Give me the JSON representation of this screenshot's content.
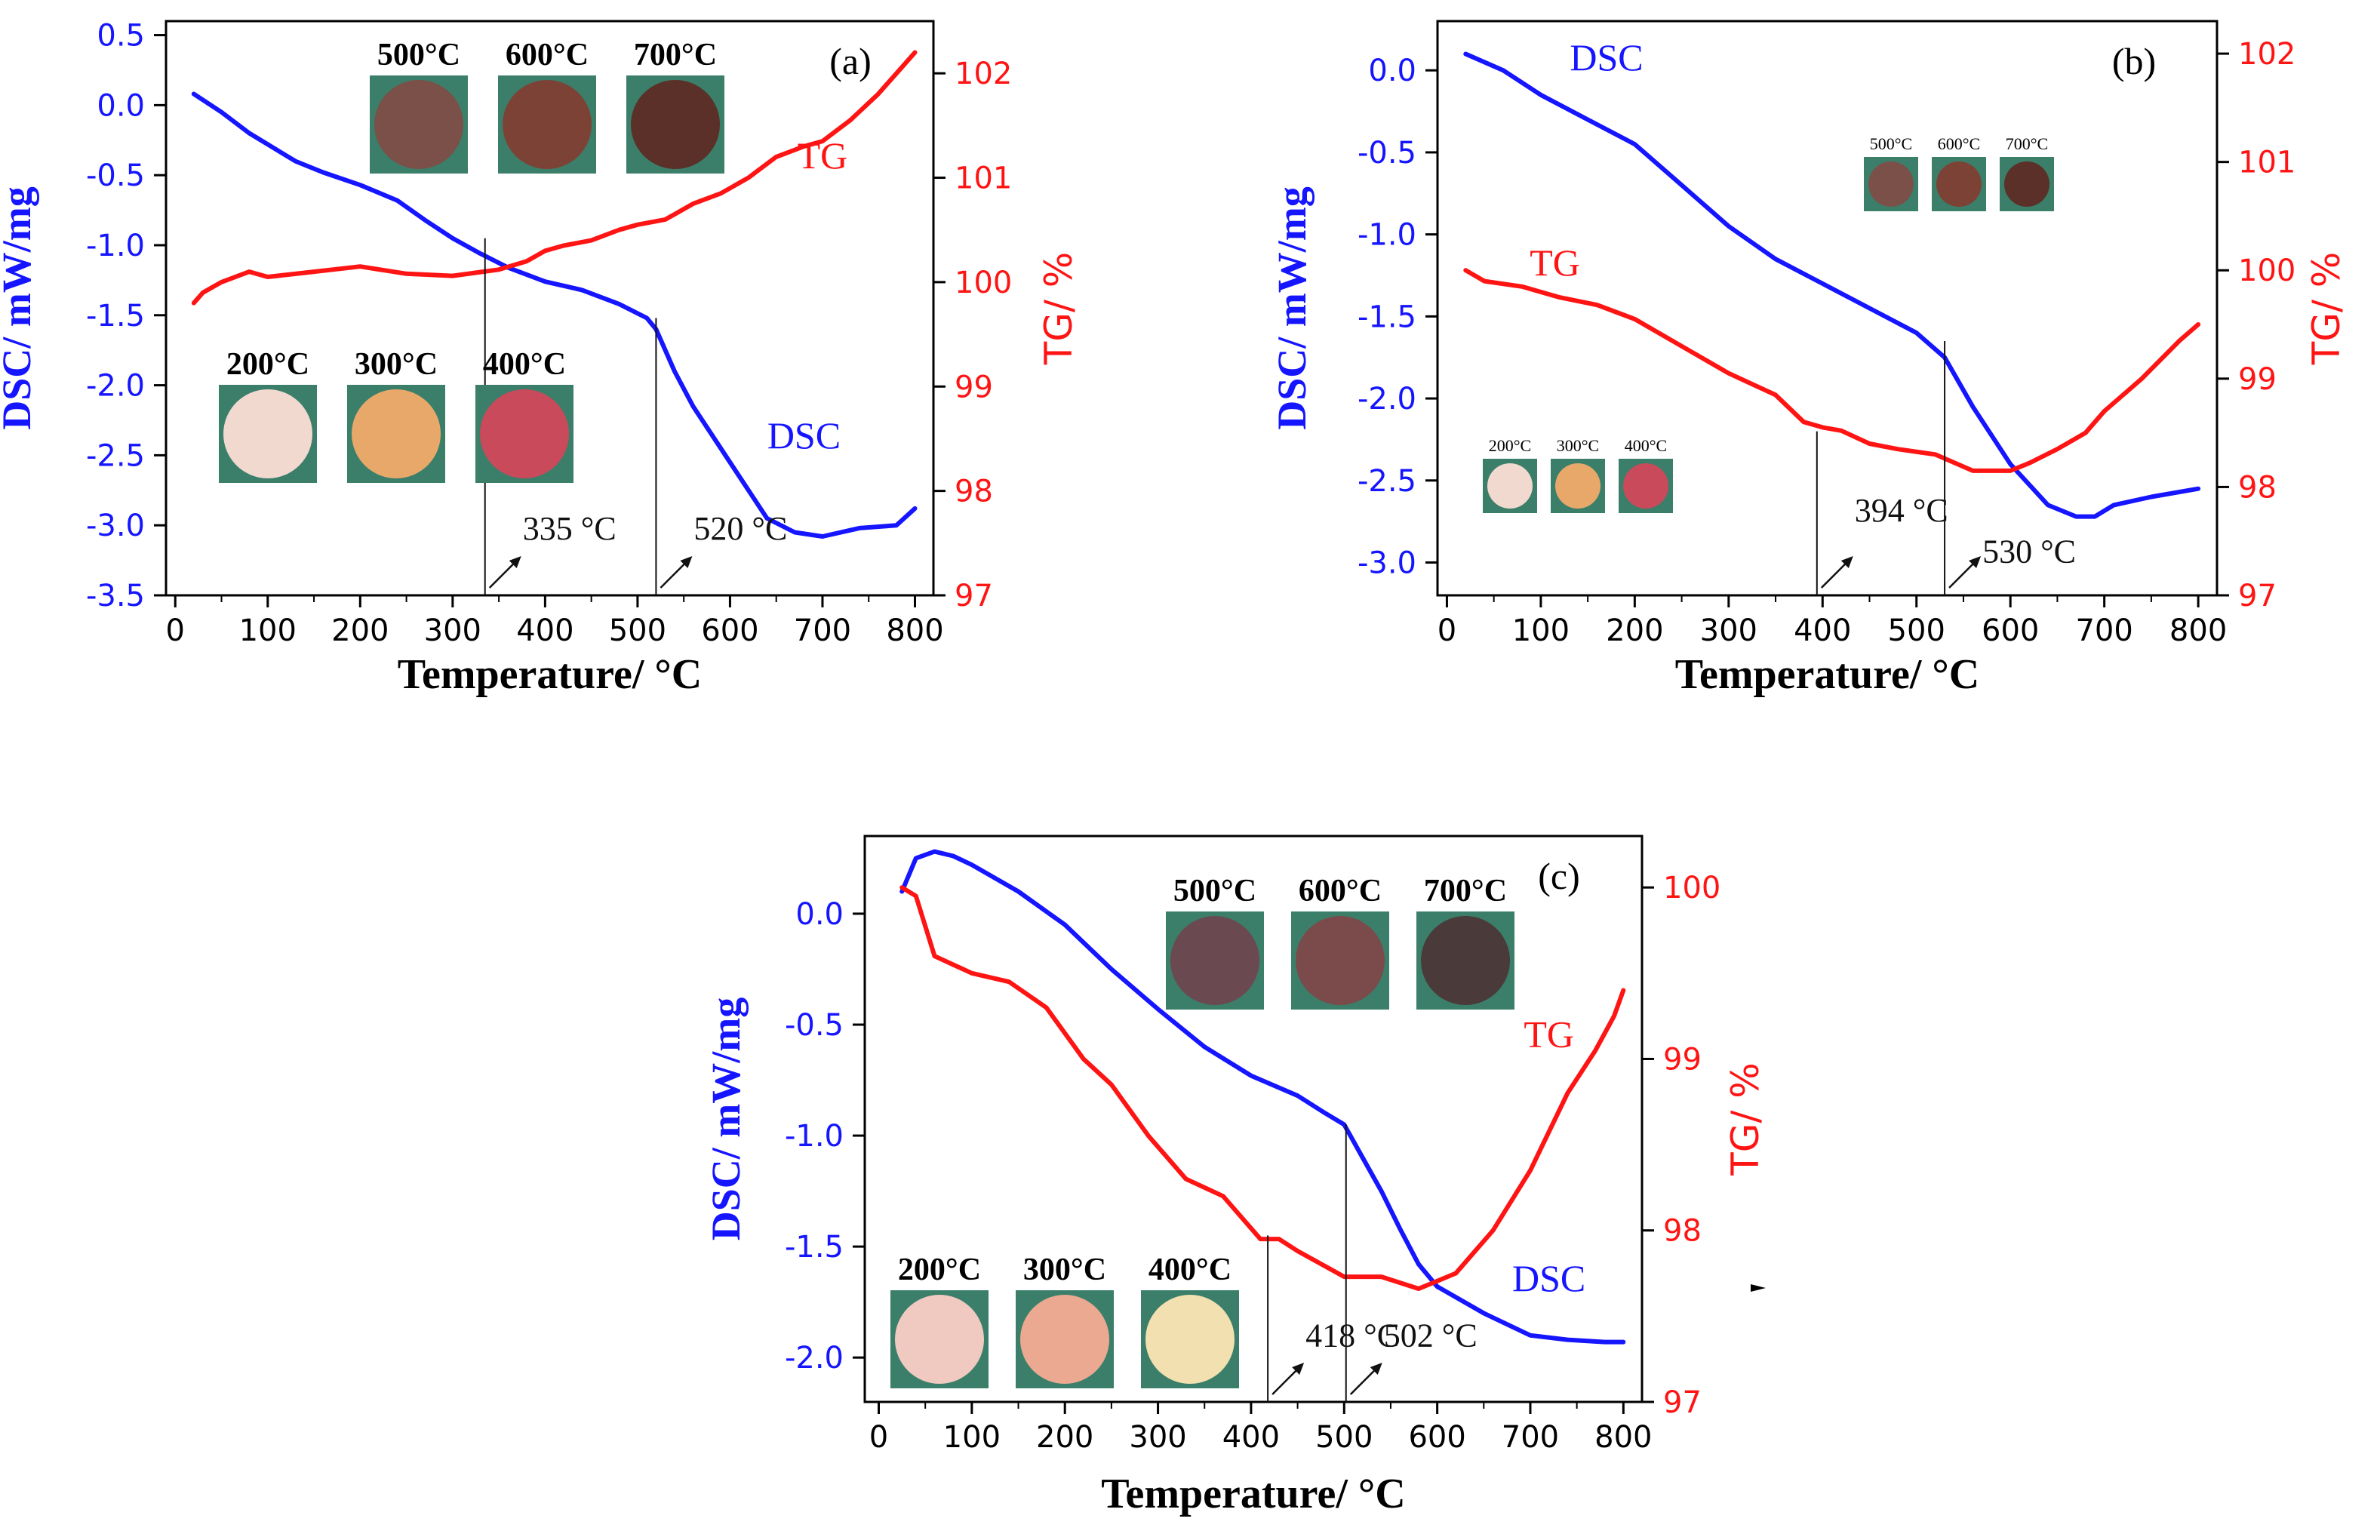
{
  "colors": {
    "dsc": "#1515ff",
    "tg": "#ff1414",
    "axis": "#000000",
    "annot": "#111111"
  },
  "chart_data": [
    {
      "type": "line",
      "panel_label": "(a)",
      "xlabel": "Temperature/ °C",
      "xlim": [
        -10,
        820
      ],
      "xticks": [
        0,
        100,
        200,
        300,
        400,
        500,
        600,
        700,
        800
      ],
      "ylabel_left": "DSC/ mW/mg",
      "ylim_left": [
        -3.5,
        0.6
      ],
      "yticks_left": [
        "0.5",
        "0.0",
        "-0.5",
        "-1.0",
        "-1.5",
        "-2.0",
        "-2.5",
        "-3.0",
        "-3.5"
      ],
      "ylabel_right": "TG/ %",
      "ylim_right": [
        97,
        102.5
      ],
      "yticks_right": [
        "102",
        "101",
        "100",
        "99",
        "98",
        "97"
      ],
      "series": [
        {
          "name": "DSC",
          "axis": "left",
          "label": "DSC",
          "x": [
            20,
            50,
            80,
            100,
            130,
            160,
            200,
            240,
            270,
            300,
            330,
            360,
            400,
            440,
            480,
            510,
            520,
            540,
            560,
            600,
            640,
            670,
            700,
            740,
            780,
            800
          ],
          "y": [
            0.08,
            -0.05,
            -0.2,
            -0.28,
            -0.4,
            -0.48,
            -0.57,
            -0.68,
            -0.82,
            -0.95,
            -1.06,
            -1.16,
            -1.26,
            -1.32,
            -1.42,
            -1.52,
            -1.6,
            -1.9,
            -2.15,
            -2.55,
            -2.95,
            -3.05,
            -3.08,
            -3.02,
            -3.0,
            -2.88
          ]
        },
        {
          "name": "TG",
          "axis": "right",
          "label": "TG",
          "x": [
            20,
            30,
            50,
            80,
            100,
            150,
            200,
            250,
            300,
            350,
            380,
            400,
            420,
            450,
            480,
            500,
            530,
            560,
            590,
            620,
            650,
            680,
            700,
            730,
            760,
            780,
            800
          ],
          "y": [
            99.8,
            99.9,
            100.0,
            100.1,
            100.05,
            100.1,
            100.15,
            100.08,
            100.06,
            100.12,
            100.2,
            100.3,
            100.35,
            100.4,
            100.5,
            100.55,
            100.6,
            100.75,
            100.85,
            101.0,
            101.2,
            101.3,
            101.35,
            101.55,
            101.8,
            102.0,
            102.2
          ]
        }
      ],
      "annotations": [
        {
          "text": "335 °C",
          "x": 335,
          "y": -3.1,
          "x_to": 335,
          "from_left": -0.95
        },
        {
          "text": "520 °C",
          "x": 520,
          "y": -3.1,
          "x_to": 520,
          "from_left": -1.52
        }
      ],
      "series_text": [
        {
          "text": "TG",
          "x": 700,
          "y": -0.45
        },
        {
          "text": "DSC",
          "x": 680,
          "y": -2.45
        }
      ],
      "insets": [
        {
          "temps": [
            "500°C",
            "600°C",
            "700°C"
          ],
          "style": "large",
          "group": "top"
        },
        {
          "temps": [
            "200°C",
            "300°C",
            "400°C"
          ],
          "style": "large",
          "group": "bottom"
        }
      ]
    },
    {
      "type": "line",
      "panel_label": "(b)",
      "xlabel": "Temperature/ °C",
      "xlim": [
        -10,
        820
      ],
      "xticks": [
        0,
        100,
        200,
        300,
        400,
        500,
        600,
        700,
        800
      ],
      "ylabel_left": "DSC/ mW/mg",
      "ylim_left": [
        -3.2,
        0.3
      ],
      "yticks_left": [
        "0.0",
        "-0.5",
        "-1.0",
        "-1.5",
        "-2.0",
        "-2.5",
        "-3.0"
      ],
      "ylabel_right": "TG/ %",
      "ylim_right": [
        97,
        102.3
      ],
      "yticks_right": [
        "102",
        "101",
        "100",
        "99",
        "98",
        "97"
      ],
      "series": [
        {
          "name": "DSC",
          "axis": "left",
          "label": "DSC",
          "x": [
            20,
            60,
            100,
            150,
            200,
            250,
            300,
            350,
            400,
            450,
            500,
            530,
            560,
            600,
            640,
            670,
            690,
            710,
            750,
            800
          ],
          "y": [
            0.1,
            0.0,
            -0.15,
            -0.3,
            -0.45,
            -0.7,
            -0.95,
            -1.15,
            -1.3,
            -1.45,
            -1.6,
            -1.75,
            -2.05,
            -2.4,
            -2.65,
            -2.72,
            -2.72,
            -2.65,
            -2.6,
            -2.55
          ]
        },
        {
          "name": "TG",
          "axis": "right",
          "label": "TG",
          "x": [
            20,
            40,
            80,
            120,
            160,
            200,
            250,
            300,
            350,
            380,
            400,
            420,
            450,
            480,
            520,
            560,
            600,
            620,
            650,
            680,
            700,
            740,
            780,
            800
          ],
          "y": [
            100.0,
            99.9,
            99.85,
            99.75,
            99.68,
            99.55,
            99.3,
            99.05,
            98.85,
            98.6,
            98.55,
            98.52,
            98.4,
            98.35,
            98.3,
            98.15,
            98.15,
            98.22,
            98.35,
            98.5,
            98.7,
            99.0,
            99.35,
            99.5
          ]
        }
      ],
      "annotations": [
        {
          "text": "394 °C",
          "x": 394,
          "y": -2.75,
          "from_left": -2.2
        },
        {
          "text": "530 °C",
          "x": 530,
          "y": -3.0,
          "from_left": -1.65
        }
      ],
      "series_text": [
        {
          "text": "DSC",
          "x": 170,
          "y": 0.0
        },
        {
          "text": "TG",
          "x": 115,
          "y": -1.25
        }
      ],
      "insets": [
        {
          "temps": [
            "500°C",
            "600°C",
            "700°C"
          ],
          "style": "small",
          "group": "top"
        },
        {
          "temps": [
            "200°C",
            "300°C",
            "400°C"
          ],
          "style": "small",
          "group": "bottom"
        }
      ]
    },
    {
      "type": "line",
      "panel_label": "(c)",
      "xlabel": "Temperature/ °C",
      "xlim": [
        -15,
        820
      ],
      "xticks": [
        0,
        100,
        200,
        300,
        400,
        500,
        600,
        700,
        800
      ],
      "ylabel_left": "DSC/ mW/mg",
      "ylim_left": [
        -2.2,
        0.35
      ],
      "yticks_left": [
        "0.0",
        "-0.5",
        "-1.0",
        "-1.5",
        "-2.0"
      ],
      "ylabel_right": "TG/ %",
      "ylim_right": [
        97,
        100.3
      ],
      "yticks_right": [
        "100",
        "99",
        "98",
        "97"
      ],
      "series": [
        {
          "name": "DSC",
          "axis": "left",
          "label": "DSC",
          "x": [
            25,
            40,
            60,
            80,
            100,
            150,
            200,
            250,
            300,
            350,
            400,
            450,
            480,
            500,
            520,
            540,
            560,
            580,
            600,
            650,
            700,
            740,
            780,
            800
          ],
          "y": [
            0.1,
            0.25,
            0.28,
            0.26,
            0.22,
            0.1,
            -0.05,
            -0.25,
            -0.43,
            -0.6,
            -0.73,
            -0.82,
            -0.9,
            -0.95,
            -1.1,
            -1.25,
            -1.42,
            -1.58,
            -1.68,
            -1.8,
            -1.9,
            -1.92,
            -1.93,
            -1.93
          ]
        },
        {
          "name": "TG",
          "axis": "right",
          "label": "TG",
          "x": [
            25,
            40,
            60,
            80,
            100,
            140,
            180,
            220,
            250,
            290,
            330,
            370,
            410,
            430,
            450,
            500,
            540,
            580,
            620,
            660,
            700,
            740,
            770,
            790,
            800
          ],
          "y": [
            100.0,
            99.95,
            99.6,
            99.55,
            99.5,
            99.45,
            99.3,
            99.0,
            98.85,
            98.55,
            98.3,
            98.2,
            97.95,
            97.95,
            97.88,
            97.73,
            97.73,
            97.66,
            97.75,
            98.0,
            98.35,
            98.8,
            99.05,
            99.25,
            99.4
          ]
        }
      ],
      "annotations": [
        {
          "text": "418 °C",
          "x": 418,
          "y": -1.95,
          "from_left": -1.45
        },
        {
          "text": "502 °C",
          "x": 502,
          "y": -1.95,
          "from_left": -0.95
        }
      ],
      "series_text": [
        {
          "text": "TG",
          "x": 720,
          "y": -0.6
        },
        {
          "text": "DSC",
          "x": 720,
          "y": -1.7
        }
      ],
      "insets": [
        {
          "temps": [
            "500°C",
            "600°C",
            "700°C"
          ],
          "style": "large",
          "group": "top"
        },
        {
          "temps": [
            "200°C",
            "300°C",
            "400°C"
          ],
          "style": "large",
          "group": "bottom"
        }
      ]
    }
  ]
}
